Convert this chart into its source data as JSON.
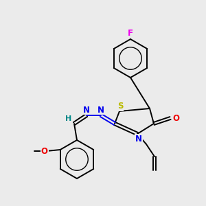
{
  "background_color": "#ebebeb",
  "atom_colors": {
    "C": "#000000",
    "N": "#0000ee",
    "O": "#ee0000",
    "S": "#bbbb00",
    "F": "#ee00ee",
    "H": "#008888"
  },
  "figsize": [
    3.0,
    3.0
  ],
  "dpi": 100
}
